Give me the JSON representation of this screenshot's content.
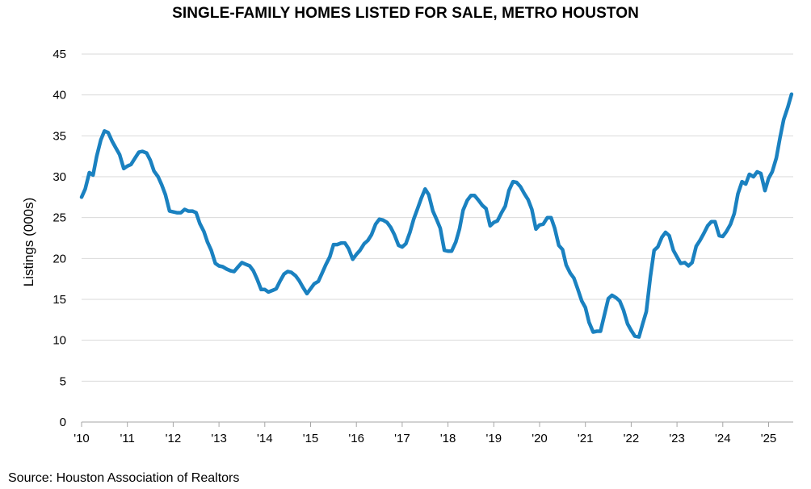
{
  "source": "Source: Houston Association of Realtors",
  "chart_data": {
    "type": "line",
    "title": "SINGLE-FAMILY HOMES LISTED FOR SALE, METRO HOUSTON",
    "xlabel": "",
    "ylabel": "Listings (000s)",
    "ylim": [
      0,
      45
    ],
    "yticks": [
      0,
      5,
      10,
      15,
      20,
      25,
      30,
      35,
      40,
      45
    ],
    "xlim": [
      2010,
      2025.5
    ],
    "xticks": [
      {
        "value": 2010,
        "label": "'10"
      },
      {
        "value": 2011,
        "label": "'11"
      },
      {
        "value": 2012,
        "label": "'12"
      },
      {
        "value": 2013,
        "label": "'13"
      },
      {
        "value": 2014,
        "label": "'14"
      },
      {
        "value": 2015,
        "label": "'15"
      },
      {
        "value": 2016,
        "label": "'16"
      },
      {
        "value": 2017,
        "label": "'17"
      },
      {
        "value": 2018,
        "label": "'18"
      },
      {
        "value": 2019,
        "label": "'19"
      },
      {
        "value": 2020,
        "label": "'20"
      },
      {
        "value": 2021,
        "label": "'21"
      },
      {
        "value": 2022,
        "label": "'22"
      },
      {
        "value": 2023,
        "label": "'23"
      },
      {
        "value": 2024,
        "label": "'24"
      },
      {
        "value": 2025,
        "label": "'25"
      }
    ],
    "grid": "horizontal",
    "line_color": "#1a81c0",
    "series": [
      {
        "points": [
          [
            2010.0,
            27.5
          ],
          [
            2010.08,
            28.5
          ],
          [
            2010.17,
            30.5
          ],
          [
            2010.25,
            30.2
          ],
          [
            2010.33,
            32.5
          ],
          [
            2010.42,
            34.5
          ],
          [
            2010.5,
            35.6
          ],
          [
            2010.58,
            35.4
          ],
          [
            2010.67,
            34.3
          ],
          [
            2010.75,
            33.5
          ],
          [
            2010.83,
            32.7
          ],
          [
            2010.92,
            31.0
          ],
          [
            2011.0,
            31.3
          ],
          [
            2011.08,
            31.5
          ],
          [
            2011.17,
            32.3
          ],
          [
            2011.25,
            33.0
          ],
          [
            2011.33,
            33.1
          ],
          [
            2011.42,
            32.9
          ],
          [
            2011.5,
            32.0
          ],
          [
            2011.58,
            30.7
          ],
          [
            2011.67,
            30.0
          ],
          [
            2011.75,
            29.0
          ],
          [
            2011.83,
            27.8
          ],
          [
            2011.92,
            25.8
          ],
          [
            2012.0,
            25.7
          ],
          [
            2012.08,
            25.6
          ],
          [
            2012.17,
            25.6
          ],
          [
            2012.25,
            26.0
          ],
          [
            2012.33,
            25.8
          ],
          [
            2012.42,
            25.8
          ],
          [
            2012.5,
            25.6
          ],
          [
            2012.58,
            24.3
          ],
          [
            2012.67,
            23.3
          ],
          [
            2012.75,
            22.0
          ],
          [
            2012.83,
            21.0
          ],
          [
            2012.92,
            19.4
          ],
          [
            2013.0,
            19.1
          ],
          [
            2013.08,
            19.0
          ],
          [
            2013.17,
            18.7
          ],
          [
            2013.25,
            18.5
          ],
          [
            2013.33,
            18.4
          ],
          [
            2013.42,
            19.0
          ],
          [
            2013.5,
            19.5
          ],
          [
            2013.58,
            19.3
          ],
          [
            2013.67,
            19.1
          ],
          [
            2013.75,
            18.5
          ],
          [
            2013.83,
            17.5
          ],
          [
            2013.92,
            16.2
          ],
          [
            2014.0,
            16.2
          ],
          [
            2014.08,
            15.9
          ],
          [
            2014.17,
            16.1
          ],
          [
            2014.25,
            16.3
          ],
          [
            2014.33,
            17.2
          ],
          [
            2014.42,
            18.1
          ],
          [
            2014.5,
            18.4
          ],
          [
            2014.58,
            18.3
          ],
          [
            2014.67,
            17.9
          ],
          [
            2014.75,
            17.3
          ],
          [
            2014.83,
            16.5
          ],
          [
            2014.92,
            15.7
          ],
          [
            2015.0,
            16.3
          ],
          [
            2015.08,
            16.9
          ],
          [
            2015.17,
            17.2
          ],
          [
            2015.25,
            18.2
          ],
          [
            2015.33,
            19.2
          ],
          [
            2015.42,
            20.2
          ],
          [
            2015.5,
            21.7
          ],
          [
            2015.58,
            21.7
          ],
          [
            2015.67,
            21.9
          ],
          [
            2015.75,
            21.9
          ],
          [
            2015.83,
            21.2
          ],
          [
            2015.92,
            19.9
          ],
          [
            2016.0,
            20.5
          ],
          [
            2016.08,
            21.0
          ],
          [
            2016.17,
            21.8
          ],
          [
            2016.25,
            22.2
          ],
          [
            2016.33,
            22.9
          ],
          [
            2016.42,
            24.2
          ],
          [
            2016.5,
            24.8
          ],
          [
            2016.58,
            24.7
          ],
          [
            2016.67,
            24.4
          ],
          [
            2016.75,
            23.8
          ],
          [
            2016.83,
            22.9
          ],
          [
            2016.92,
            21.6
          ],
          [
            2017.0,
            21.4
          ],
          [
            2017.08,
            21.8
          ],
          [
            2017.17,
            23.2
          ],
          [
            2017.25,
            24.8
          ],
          [
            2017.33,
            26.0
          ],
          [
            2017.42,
            27.4
          ],
          [
            2017.5,
            28.5
          ],
          [
            2017.58,
            27.8
          ],
          [
            2017.67,
            25.8
          ],
          [
            2017.75,
            24.8
          ],
          [
            2017.83,
            23.7
          ],
          [
            2017.92,
            21.0
          ],
          [
            2018.0,
            20.9
          ],
          [
            2018.08,
            20.9
          ],
          [
            2018.17,
            22.0
          ],
          [
            2018.25,
            23.6
          ],
          [
            2018.33,
            25.9
          ],
          [
            2018.42,
            27.1
          ],
          [
            2018.5,
            27.7
          ],
          [
            2018.58,
            27.7
          ],
          [
            2018.67,
            27.1
          ],
          [
            2018.75,
            26.5
          ],
          [
            2018.83,
            26.1
          ],
          [
            2018.92,
            24.0
          ],
          [
            2019.0,
            24.4
          ],
          [
            2019.08,
            24.6
          ],
          [
            2019.17,
            25.6
          ],
          [
            2019.25,
            26.4
          ],
          [
            2019.33,
            28.3
          ],
          [
            2019.42,
            29.4
          ],
          [
            2019.5,
            29.3
          ],
          [
            2019.58,
            28.8
          ],
          [
            2019.67,
            27.9
          ],
          [
            2019.75,
            27.2
          ],
          [
            2019.83,
            26.0
          ],
          [
            2019.92,
            23.6
          ],
          [
            2020.0,
            24.1
          ],
          [
            2020.08,
            24.2
          ],
          [
            2020.17,
            25.0
          ],
          [
            2020.25,
            25.0
          ],
          [
            2020.33,
            23.7
          ],
          [
            2020.42,
            21.6
          ],
          [
            2020.5,
            21.1
          ],
          [
            2020.58,
            19.2
          ],
          [
            2020.67,
            18.2
          ],
          [
            2020.75,
            17.6
          ],
          [
            2020.83,
            16.3
          ],
          [
            2020.92,
            14.8
          ],
          [
            2021.0,
            14.0
          ],
          [
            2021.08,
            12.2
          ],
          [
            2021.17,
            11.0
          ],
          [
            2021.25,
            11.1
          ],
          [
            2021.33,
            11.1
          ],
          [
            2021.42,
            13.2
          ],
          [
            2021.5,
            15.1
          ],
          [
            2021.58,
            15.5
          ],
          [
            2021.67,
            15.2
          ],
          [
            2021.75,
            14.8
          ],
          [
            2021.83,
            13.7
          ],
          [
            2021.92,
            12.0
          ],
          [
            2022.0,
            11.2
          ],
          [
            2022.08,
            10.5
          ],
          [
            2022.17,
            10.4
          ],
          [
            2022.25,
            12.0
          ],
          [
            2022.33,
            13.5
          ],
          [
            2022.42,
            17.8
          ],
          [
            2022.5,
            21.0
          ],
          [
            2022.58,
            21.4
          ],
          [
            2022.67,
            22.6
          ],
          [
            2022.75,
            23.2
          ],
          [
            2022.83,
            22.8
          ],
          [
            2022.92,
            21.0
          ],
          [
            2023.0,
            20.2
          ],
          [
            2023.08,
            19.4
          ],
          [
            2023.17,
            19.5
          ],
          [
            2023.25,
            19.1
          ],
          [
            2023.33,
            19.5
          ],
          [
            2023.42,
            21.5
          ],
          [
            2023.5,
            22.2
          ],
          [
            2023.58,
            23.0
          ],
          [
            2023.67,
            24.0
          ],
          [
            2023.75,
            24.5
          ],
          [
            2023.83,
            24.5
          ],
          [
            2023.92,
            22.8
          ],
          [
            2024.0,
            22.7
          ],
          [
            2024.08,
            23.3
          ],
          [
            2024.17,
            24.2
          ],
          [
            2024.25,
            25.5
          ],
          [
            2024.33,
            27.9
          ],
          [
            2024.42,
            29.4
          ],
          [
            2024.5,
            29.1
          ],
          [
            2024.58,
            30.3
          ],
          [
            2024.67,
            30.0
          ],
          [
            2024.75,
            30.6
          ],
          [
            2024.83,
            30.4
          ],
          [
            2024.92,
            28.3
          ],
          [
            2025.0,
            29.8
          ],
          [
            2025.08,
            30.6
          ],
          [
            2025.17,
            32.3
          ],
          [
            2025.25,
            34.8
          ],
          [
            2025.33,
            37.0
          ],
          [
            2025.42,
            38.5
          ],
          [
            2025.5,
            40.1
          ]
        ]
      }
    ]
  }
}
